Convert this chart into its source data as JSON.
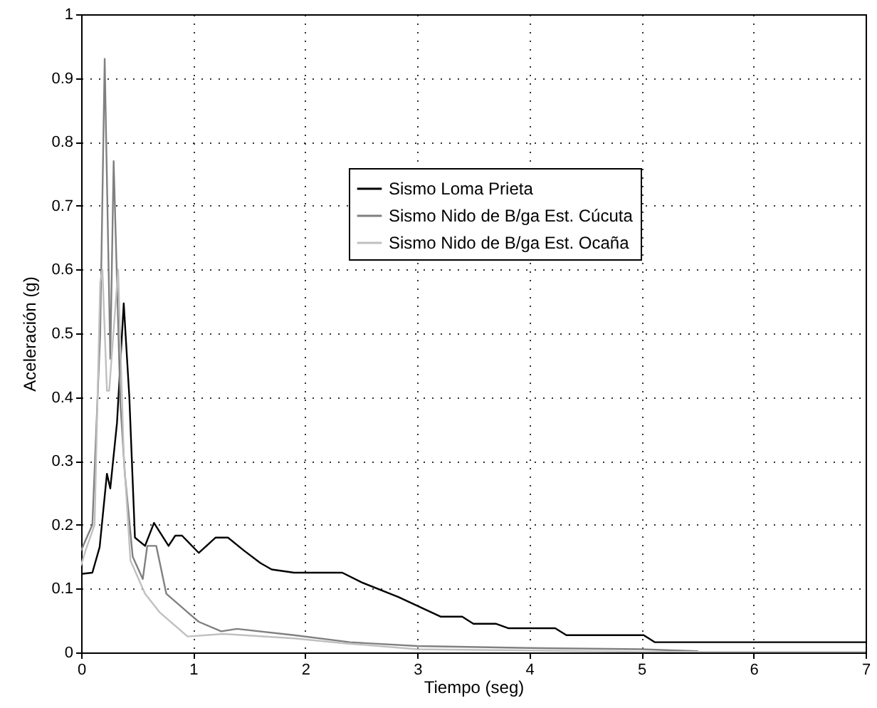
{
  "chart_data": {
    "type": "line",
    "xlabel": "Tiempo (seg)",
    "ylabel": "Aceleración (g)",
    "xlim": [
      0,
      7
    ],
    "ylim": [
      0,
      1
    ],
    "xticks": [
      0,
      1,
      2,
      3,
      4,
      5,
      6,
      7
    ],
    "yticks": [
      0,
      0.1,
      0.2,
      0.3,
      0.4,
      0.5,
      0.6,
      0.7,
      0.8,
      0.9,
      1
    ],
    "grid": true,
    "legend": "top right",
    "series": [
      {
        "name": "Sismo Loma Prieta",
        "color": "#000000",
        "x": [
          0,
          0.1,
          0.165,
          0.23,
          0.26,
          0.32,
          0.38,
          0.43,
          0.48,
          0.57,
          0.65,
          0.78,
          0.84,
          0.9,
          1.05,
          1.2,
          1.31,
          1.45,
          1.6,
          1.7,
          1.9,
          2.33,
          2.5,
          2.83,
          3.21,
          3.4,
          3.5,
          3.7,
          3.81,
          4.23,
          4.33,
          5.02,
          5.12,
          7
        ],
        "values": [
          0.123,
          0.125,
          0.165,
          0.28,
          0.257,
          0.36,
          0.547,
          0.4,
          0.18,
          0.167,
          0.203,
          0.167,
          0.183,
          0.183,
          0.156,
          0.18,
          0.18,
          0.16,
          0.14,
          0.13,
          0.125,
          0.125,
          0.11,
          0.087,
          0.056,
          0.056,
          0.045,
          0.045,
          0.038,
          0.038,
          0.027,
          0.027,
          0.016,
          0.016
        ]
      },
      {
        "name": "Sismo Nido de B/ga Est. Cúcuta",
        "color": "#808080",
        "x": [
          0,
          0.1,
          0.17,
          0.21,
          0.26,
          0.29,
          0.35,
          0.39,
          0.46,
          0.55,
          0.59,
          0.67,
          0.76,
          0.95,
          1.05,
          1.25,
          1.39,
          1.9,
          2.4,
          3.0,
          4.0,
          5.0,
          5.5
        ],
        "values": [
          0.16,
          0.2,
          0.5,
          0.93,
          0.46,
          0.77,
          0.39,
          0.28,
          0.15,
          0.115,
          0.167,
          0.167,
          0.092,
          0.063,
          0.048,
          0.033,
          0.037,
          0.027,
          0.016,
          0.01,
          0.007,
          0.005,
          0.002
        ]
      },
      {
        "name": "Sismo Nido de B/ga Est. Ocaña",
        "color": "#c0c0c0",
        "x": [
          0,
          0.04,
          0.12,
          0.17,
          0.19,
          0.23,
          0.25,
          0.33,
          0.38,
          0.44,
          0.57,
          0.7,
          0.95,
          1.27,
          1.9,
          2.37,
          3.0,
          4.0,
          5.0,
          7
        ],
        "values": [
          0.137,
          0.16,
          0.2,
          0.58,
          0.6,
          0.41,
          0.41,
          0.6,
          0.31,
          0.144,
          0.092,
          0.063,
          0.025,
          0.029,
          0.022,
          0.014,
          0.005,
          0.003,
          0.001,
          0.001
        ]
      }
    ]
  }
}
